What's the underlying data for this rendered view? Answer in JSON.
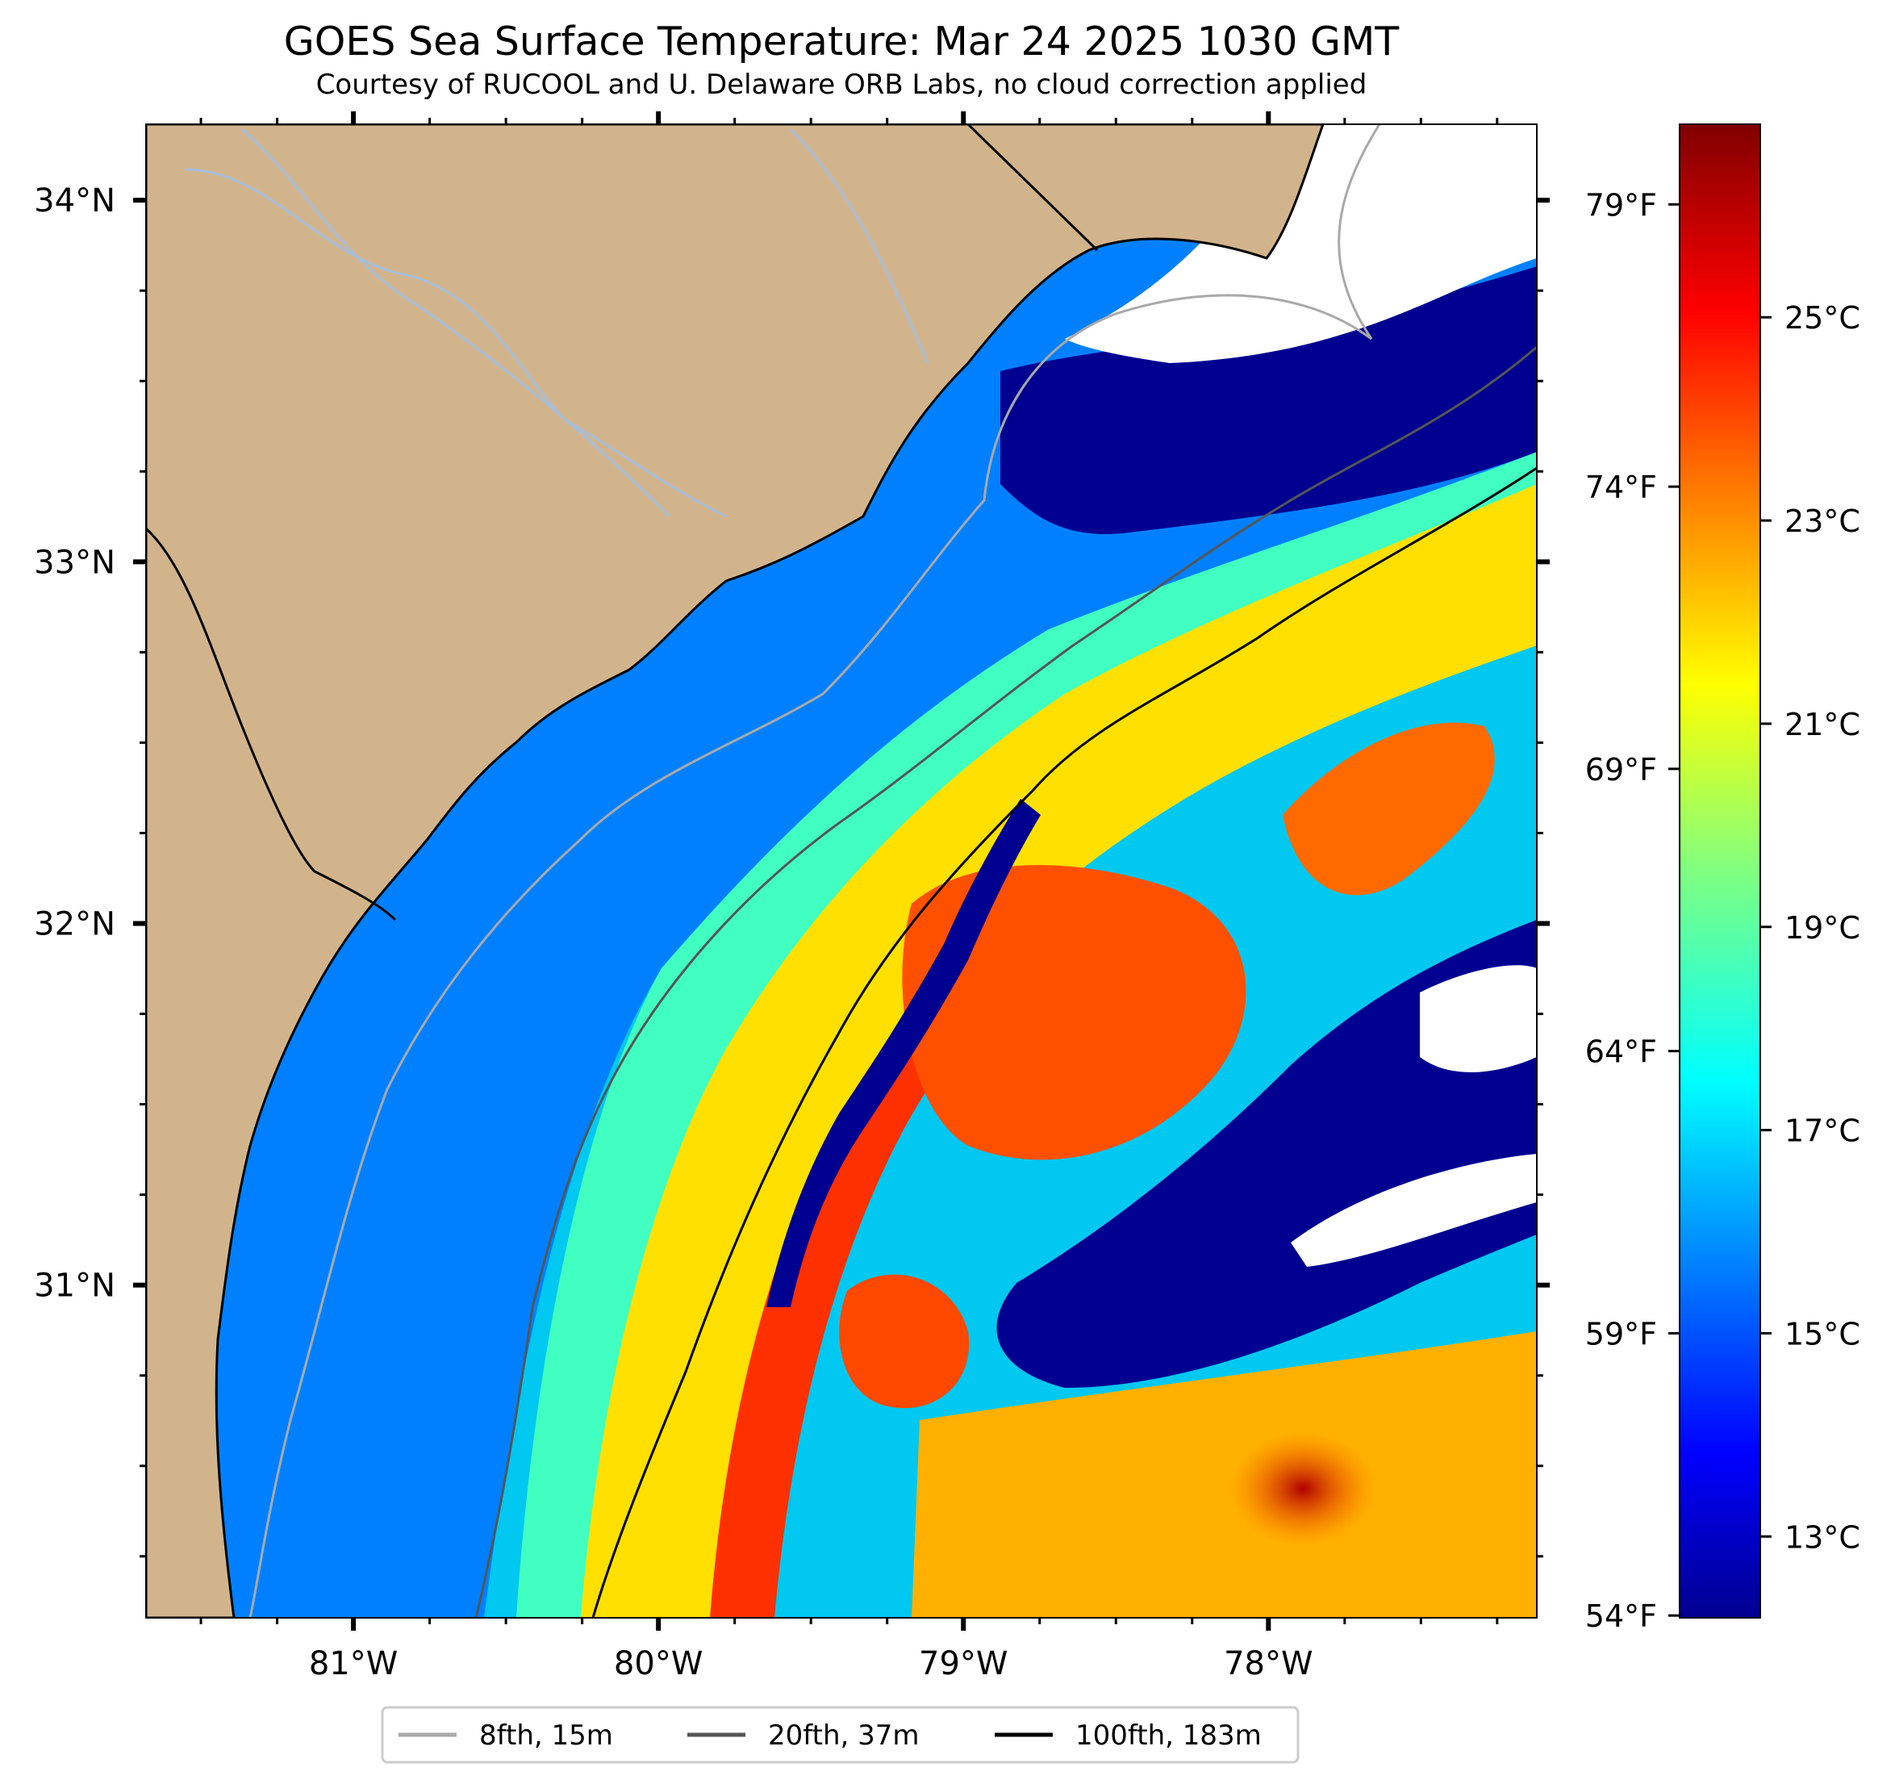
{
  "title": "GOES Sea Surface Temperature: Mar 24 2025 1030 GMT",
  "subtitle": "Courtesy of RUCOOL and U. Delaware ORB Labs, no cloud correction applied",
  "map": {
    "lon_range": [
      -81.68,
      -77.12
    ],
    "lat_range": [
      30.08,
      34.21
    ],
    "x_ticks": [
      {
        "lon": -81,
        "label": "81°W"
      },
      {
        "lon": -80,
        "label": "80°W"
      },
      {
        "lon": -79,
        "label": "79°W"
      },
      {
        "lon": -78,
        "label": "78°W"
      }
    ],
    "y_ticks": [
      {
        "lat": 34,
        "label": "34°N"
      },
      {
        "lat": 33,
        "label": "33°N"
      },
      {
        "lat": 32,
        "label": "32°N"
      },
      {
        "lat": 31,
        "label": "31°N"
      }
    ],
    "right_ticks_fahrenheit": [
      {
        "label": "79°F"
      },
      {
        "label": "74°F"
      },
      {
        "label": "69°F"
      },
      {
        "label": "64°F"
      },
      {
        "label": "59°F"
      },
      {
        "label": "54°F"
      }
    ],
    "colors": {
      "land": "#D2B48C",
      "cloud": "#FFFFFF",
      "river": "#A6BDDB",
      "coast": "#000000"
    }
  },
  "colorbar": {
    "cmap": "jet",
    "range_celsius": [
      12.2,
      26.9
    ],
    "ticks": [
      {
        "value": 13,
        "label": "13°C"
      },
      {
        "value": 15,
        "label": "15°C"
      },
      {
        "value": 17,
        "label": "17°C"
      },
      {
        "value": 19,
        "label": "19°C"
      },
      {
        "value": 21,
        "label": "21°C"
      },
      {
        "value": 23,
        "label": "23°C"
      },
      {
        "value": 25,
        "label": "25°C"
      }
    ]
  },
  "legend": {
    "placement": "bottom-center",
    "items": [
      {
        "label": "8fth, 15m",
        "color": "#A9A9A9"
      },
      {
        "label": "20fth, 37m",
        "color": "#555555"
      },
      {
        "label": "100fth, 183m",
        "color": "#000000"
      }
    ]
  }
}
